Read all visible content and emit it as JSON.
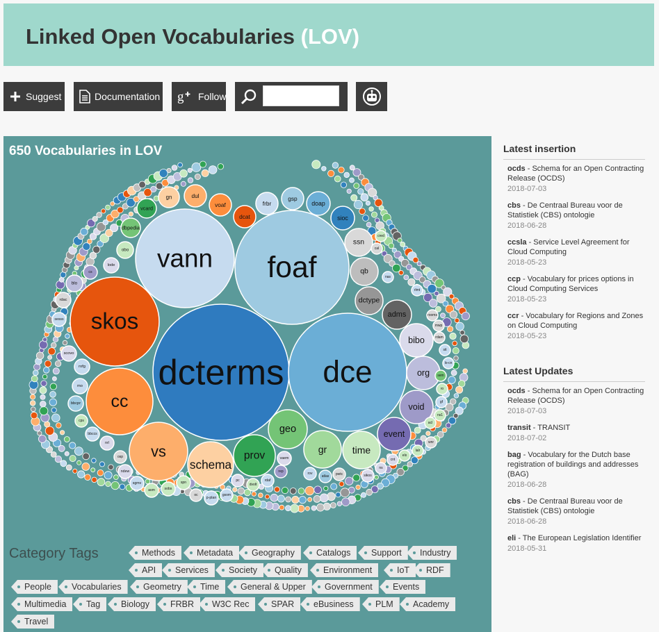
{
  "header": {
    "title": "Linked Open Vocabularies",
    "title_accent": "(LOV)"
  },
  "toolbar": {
    "suggest_label": "Suggest",
    "documentation_label": "Documentation",
    "follow_label": "Follow",
    "search_value": ""
  },
  "viz": {
    "title": "650 Vocabularies in LOV",
    "bubbles": [
      {
        "label": "dcterms",
        "color": "#2f7bbf",
        "r": 98
      },
      {
        "label": "dce",
        "color": "#6baed6",
        "r": 85
      },
      {
        "label": "foaf",
        "color": "#9ecae1",
        "r": 82
      },
      {
        "label": "vann",
        "color": "#c6dbef",
        "r": 71
      },
      {
        "label": "skos",
        "color": "#e6550d",
        "r": 64
      },
      {
        "label": "cc",
        "color": "#fd8d3c",
        "r": 48
      },
      {
        "label": "vs",
        "color": "#fdae6b",
        "r": 42
      },
      {
        "label": "schema",
        "color": "#fdd0a2",
        "r": 33
      },
      {
        "label": "prov",
        "color": "#31a354",
        "r": 30
      },
      {
        "label": "geo",
        "color": "#74c476",
        "r": 28
      },
      {
        "label": "gr",
        "color": "#a1d99b",
        "r": 27
      },
      {
        "label": "time",
        "color": "#c7e9c0",
        "r": 27
      },
      {
        "label": "event",
        "color": "#756bb1",
        "r": 24
      },
      {
        "label": "void",
        "color": "#9e9ac8",
        "r": 24
      },
      {
        "label": "org",
        "color": "#bcbddc",
        "r": 24
      },
      {
        "label": "bibo",
        "color": "#dadaeb",
        "r": 24
      },
      {
        "label": "adms",
        "color": "#636363",
        "r": 21
      },
      {
        "label": "dctype",
        "color": "#969696",
        "r": 20
      },
      {
        "label": "qb",
        "color": "#bdbdbd",
        "r": 20
      },
      {
        "label": "ssn",
        "color": "#d9d9d9",
        "r": 20
      },
      {
        "label": "sioc",
        "color": "#3182bd",
        "r": 17
      },
      {
        "label": "doap",
        "color": "#6baed6",
        "r": 17
      },
      {
        "label": "gsp",
        "color": "#9ecae1",
        "r": 16
      },
      {
        "label": "frbr",
        "color": "#c6dbef",
        "r": 16
      },
      {
        "label": "dcat",
        "color": "#e6550d",
        "r": 16
      },
      {
        "label": "voaf",
        "color": "#fd8d3c",
        "r": 16
      },
      {
        "label": "dul",
        "color": "#fdae6b",
        "r": 16
      },
      {
        "label": "gn",
        "color": "#fdd0a2",
        "r": 15
      },
      {
        "label": "vcard",
        "color": "#31a354",
        "r": 14
      },
      {
        "label": "dbpedia",
        "color": "#74c476",
        "r": 14
      },
      {
        "label": "obo",
        "color": "#c7e9c0",
        "r": 12
      },
      {
        "label": "lode",
        "color": "#dadaeb",
        "r": 11
      },
      {
        "label": "blo",
        "color": "#bcbddc",
        "r": 12
      },
      {
        "label": "cs",
        "color": "#9e9ac8",
        "r": 10
      },
      {
        "label": "rdac",
        "color": "#d9d9d9",
        "r": 11
      },
      {
        "label": "sesss",
        "color": "#c6dbef",
        "r": 10
      },
      {
        "label": "scovo",
        "color": "#dadaeb",
        "r": 11
      },
      {
        "label": "rofg",
        "color": "#c6dbef",
        "r": 11
      },
      {
        "label": "mo",
        "color": "#c6dbef",
        "r": 11
      },
      {
        "label": "bbcpr",
        "color": "#9ecae1",
        "r": 11
      },
      {
        "label": "bbccs",
        "color": "#c6dbef",
        "r": 10
      },
      {
        "label": "cps",
        "color": "#c7e9c0",
        "r": 9
      },
      {
        "label": "nrl",
        "color": "#dadaeb",
        "r": 10
      },
      {
        "label": "osp",
        "color": "#d9d9d9",
        "r": 9
      },
      {
        "label": "ndew",
        "color": "#dadaeb",
        "r": 10
      },
      {
        "label": "sgmv",
        "color": "#c6dbef",
        "r": 10
      },
      {
        "label": "asm",
        "color": "#c7e9c0",
        "r": 10
      },
      {
        "label": "sobs",
        "color": "#c7e9c0",
        "r": 10
      },
      {
        "label": "spn",
        "color": "#c7e9c0",
        "r": 10
      },
      {
        "label": "oc",
        "color": "#d9d9d9",
        "r": 9
      },
      {
        "label": "p-plan",
        "color": "#c6dbef",
        "r": 10
      },
      {
        "label": "gsom",
        "color": "#c6dbef",
        "r": 9
      },
      {
        "label": "vaem",
        "color": "#dadaeb",
        "r": 10
      },
      {
        "label": "pc",
        "color": "#dadaeb",
        "r": 9
      },
      {
        "label": "dvolt",
        "color": "#c7e9c0",
        "r": 9
      },
      {
        "label": "rdaf",
        "color": "#c6dbef",
        "r": 9
      },
      {
        "label": "rep",
        "color": "#9e9ac8",
        "r": 9
      },
      {
        "label": "rov",
        "color": "#c6dbef",
        "r": 9
      },
      {
        "label": "atlas",
        "color": "#9ecae1",
        "r": 9
      },
      {
        "label": "pwtc",
        "color": "#d9d9d9",
        "r": 9
      },
      {
        "label": "sikos",
        "color": "#dadaeb",
        "r": 9
      },
      {
        "label": "ns",
        "color": "#dadaeb",
        "r": 8
      },
      {
        "label": "cnt",
        "color": "#dadaeb",
        "r": 8
      },
      {
        "label": "elx",
        "color": "#c7e9c0",
        "r": 8
      },
      {
        "label": "lalr",
        "color": "#c7e9c0",
        "r": 8
      },
      {
        "label": "wnr",
        "color": "#d9d9d9",
        "r": 8
      },
      {
        "label": "acl",
        "color": "#c7e9c0",
        "r": 8
      },
      {
        "label": "ns1",
        "color": "#c7e9c0",
        "r": 8
      },
      {
        "label": "gf",
        "color": "#c6dbef",
        "r": 8
      },
      {
        "label": "ro",
        "color": "#c7e9c0",
        "r": 8
      },
      {
        "label": "sem",
        "color": "#74c476",
        "r": 8
      },
      {
        "label": "lo-cn",
        "color": "#c6dbef",
        "r": 8
      },
      {
        "label": "sit",
        "color": "#c6dbef",
        "r": 8
      },
      {
        "label": "rdam",
        "color": "#d9d9d9",
        "r": 8
      },
      {
        "label": "mwp",
        "color": "#d9d9d9",
        "r": 8
      },
      {
        "label": "rooms",
        "color": "#d9d9d9",
        "r": 8
      },
      {
        "label": "rlmt",
        "color": "#c6dbef",
        "r": 8
      },
      {
        "label": "nas",
        "color": "#c6dbef",
        "r": 8
      },
      {
        "label": "cal",
        "color": "#d9d9d9",
        "r": 8
      },
      {
        "label": "cred",
        "color": "#c7e9c0",
        "r": 8
      }
    ]
  },
  "categories": {
    "title": "Category Tags",
    "tags": [
      "Methods",
      "Metadata",
      "Geography",
      "Catalogs",
      "Support",
      "Industry",
      "API",
      "Services",
      "Society",
      "Quality",
      "Environment",
      "IoT",
      "RDF",
      "People",
      "Vocabularies",
      "Geometry",
      "Time",
      "General & Upper",
      "Government",
      "Events",
      "Multimedia",
      "Tag",
      "Biology",
      "FRBR",
      "W3C Rec",
      "SPAR",
      "eBusiness",
      "PLM",
      "Academy",
      "Travel"
    ]
  },
  "latest_insertion": {
    "title": "Latest insertion",
    "items": [
      {
        "prefix": "ocds",
        "desc": " - Schema for an Open Contracting Release (OCDS)",
        "date": "2018-07-03"
      },
      {
        "prefix": "cbs",
        "desc": " - De Centraal Bureau voor de Statistiek (CBS) ontologie",
        "date": "2018-06-28"
      },
      {
        "prefix": "ccsla",
        "desc": " - Service Level Agreement for Cloud Computing",
        "date": "2018-05-23"
      },
      {
        "prefix": "ccp",
        "desc": " - Vocabulary for prices options in Cloud Computing Services",
        "date": "2018-05-23"
      },
      {
        "prefix": "ccr",
        "desc": " - Vocabulary for Regions and Zones on Cloud Computing",
        "date": "2018-05-23"
      }
    ]
  },
  "latest_updates": {
    "title": "Latest Updates",
    "items": [
      {
        "prefix": "ocds",
        "desc": " - Schema for an Open Contracting Release (OCDS)",
        "date": "2018-07-03"
      },
      {
        "prefix": "transit",
        "desc": " - TRANSIT",
        "date": "2018-07-02"
      },
      {
        "prefix": "bag",
        "desc": " - Vocabulary for the Dutch base registration of buildings and addresses (BAG)",
        "date": "2018-06-28"
      },
      {
        "prefix": "cbs",
        "desc": " - De Centraal Bureau voor de Statistiek (CBS) ontologie",
        "date": "2018-06-28"
      },
      {
        "prefix": "eli",
        "desc": " - The European Legislation Identifier",
        "date": "2018-05-31"
      }
    ]
  },
  "colors": {
    "banner": "#9fd8cc",
    "viz_bg": "#5b9a9a",
    "button_bg": "#3c3c3c"
  }
}
